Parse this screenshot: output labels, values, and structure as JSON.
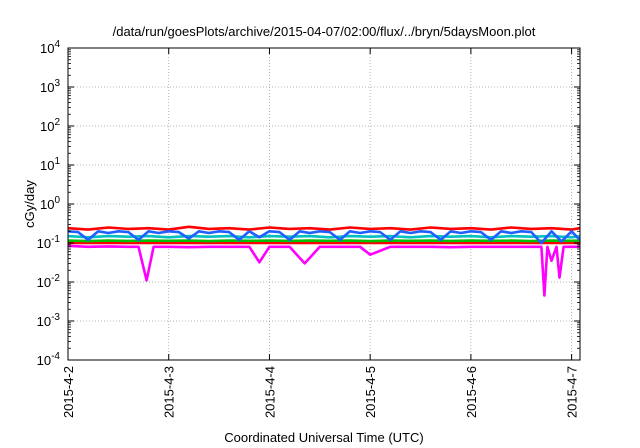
{
  "chart_data": {
    "type": "line",
    "title": "/data/run/goesPlots/archive/2015-04-07/02:00/flux/../bryn/5daysMoon.plot",
    "xlabel": "Coordinated Universal Time (UTC)",
    "ylabel": "cGy/day",
    "yscale": "log",
    "ylim": [
      0.0001,
      10000
    ],
    "xlim": [
      "2015-04-02 00:00",
      "2015-04-07 02:00"
    ],
    "grid": "on (dotted)",
    "legend": "none",
    "y_ticks": [
      {
        "value": 0.0001,
        "base": "10",
        "exp": "-4"
      },
      {
        "value": 0.001,
        "base": "10",
        "exp": "-3"
      },
      {
        "value": 0.01,
        "base": "10",
        "exp": "-2"
      },
      {
        "value": 0.1,
        "base": "10",
        "exp": "-1"
      },
      {
        "value": 1,
        "base": "10",
        "exp": "0"
      },
      {
        "value": 10,
        "base": "10",
        "exp": "1"
      },
      {
        "value": 100,
        "base": "10",
        "exp": "2"
      },
      {
        "value": 1000,
        "base": "10",
        "exp": "3"
      },
      {
        "value": 10000,
        "base": "10",
        "exp": "4"
      }
    ],
    "x_ticks": [
      {
        "value": 0,
        "label": "2015-4-2"
      },
      {
        "value": 1,
        "label": "2015-4-3"
      },
      {
        "value": 2,
        "label": "2015-4-4"
      },
      {
        "value": 3,
        "label": "2015-4-5"
      },
      {
        "value": 4,
        "label": "2015-4-6"
      },
      {
        "value": 5,
        "label": "2015-4-7"
      }
    ],
    "series": [
      {
        "color": "#ff00ff",
        "x": [
          0.0,
          0.2,
          0.4,
          0.6,
          0.7,
          0.78,
          0.85,
          1.0,
          1.2,
          1.4,
          1.6,
          1.8,
          1.9,
          2.0,
          2.2,
          2.35,
          2.5,
          2.7,
          2.9,
          3.0,
          3.2,
          3.4,
          3.6,
          3.8,
          4.0,
          4.2,
          4.4,
          4.6,
          4.7,
          4.73,
          4.76,
          4.8,
          4.85,
          4.88,
          4.92,
          5.0,
          5.08
        ],
        "values": [
          0.085,
          0.08,
          0.082,
          0.08,
          0.08,
          0.011,
          0.08,
          0.08,
          0.078,
          0.08,
          0.08,
          0.08,
          0.032,
          0.08,
          0.08,
          0.03,
          0.08,
          0.08,
          0.08,
          0.05,
          0.08,
          0.08,
          0.08,
          0.078,
          0.08,
          0.08,
          0.08,
          0.08,
          0.08,
          0.0045,
          0.08,
          0.035,
          0.08,
          0.013,
          0.08,
          0.08,
          0.08
        ]
      },
      {
        "color": "#ff0000",
        "x": [
          0.0,
          0.2,
          0.4,
          0.6,
          0.8,
          1.0,
          1.2,
          1.4,
          1.6,
          1.8,
          2.0,
          2.2,
          2.4,
          2.6,
          2.8,
          3.0,
          3.2,
          3.4,
          3.6,
          3.8,
          4.0,
          4.2,
          4.4,
          4.6,
          4.8,
          5.0,
          5.08
        ],
        "values": [
          0.1,
          0.1,
          0.1,
          0.1,
          0.1,
          0.1,
          0.1,
          0.1,
          0.1,
          0.1,
          0.1,
          0.1,
          0.1,
          0.1,
          0.1,
          0.1,
          0.1,
          0.1,
          0.1,
          0.1,
          0.1,
          0.1,
          0.1,
          0.1,
          0.1,
          0.1,
          0.1
        ]
      },
      {
        "color": "#00c000",
        "x": [
          0.0,
          0.2,
          0.4,
          0.6,
          0.8,
          1.0,
          1.2,
          1.4,
          1.6,
          1.8,
          2.0,
          2.2,
          2.4,
          2.6,
          2.8,
          3.0,
          3.2,
          3.4,
          3.6,
          3.8,
          4.0,
          4.2,
          4.4,
          4.6,
          4.8,
          5.0,
          5.08
        ],
        "values": [
          0.115,
          0.112,
          0.115,
          0.113,
          0.115,
          0.114,
          0.115,
          0.112,
          0.115,
          0.114,
          0.115,
          0.113,
          0.115,
          0.114,
          0.115,
          0.112,
          0.115,
          0.114,
          0.115,
          0.113,
          0.115,
          0.114,
          0.115,
          0.112,
          0.115,
          0.114,
          0.115
        ]
      },
      {
        "color": "#00c0c0",
        "x": [
          0.0,
          0.2,
          0.4,
          0.6,
          0.8,
          1.0,
          1.2,
          1.4,
          1.6,
          1.8,
          2.0,
          2.2,
          2.4,
          2.6,
          2.8,
          3.0,
          3.2,
          3.4,
          3.6,
          3.8,
          4.0,
          4.2,
          4.4,
          4.6,
          4.8,
          5.0,
          5.08
        ],
        "values": [
          0.15,
          0.14,
          0.15,
          0.145,
          0.15,
          0.14,
          0.15,
          0.145,
          0.15,
          0.14,
          0.15,
          0.145,
          0.15,
          0.14,
          0.15,
          0.145,
          0.15,
          0.14,
          0.15,
          0.145,
          0.15,
          0.14,
          0.15,
          0.145,
          0.15,
          0.14,
          0.15
        ]
      },
      {
        "color": "#ff0000",
        "x": [
          0.0,
          0.2,
          0.4,
          0.6,
          0.8,
          1.0,
          1.2,
          1.4,
          1.6,
          1.8,
          2.0,
          2.2,
          2.4,
          2.6,
          2.8,
          3.0,
          3.2,
          3.4,
          3.6,
          3.8,
          4.0,
          4.2,
          4.4,
          4.6,
          4.8,
          5.0,
          5.08
        ],
        "values": [
          0.24,
          0.22,
          0.25,
          0.23,
          0.24,
          0.22,
          0.26,
          0.23,
          0.24,
          0.22,
          0.25,
          0.23,
          0.24,
          0.22,
          0.25,
          0.23,
          0.24,
          0.22,
          0.25,
          0.23,
          0.24,
          0.22,
          0.25,
          0.23,
          0.24,
          0.22,
          0.24
        ]
      },
      {
        "color": "#2060ff",
        "x": [
          0.0,
          0.1,
          0.2,
          0.3,
          0.4,
          0.5,
          0.6,
          0.7,
          0.8,
          0.9,
          1.0,
          1.1,
          1.2,
          1.3,
          1.4,
          1.5,
          1.6,
          1.7,
          1.8,
          1.9,
          2.0,
          2.1,
          2.2,
          2.3,
          2.4,
          2.5,
          2.6,
          2.7,
          2.8,
          2.9,
          3.0,
          3.1,
          3.2,
          3.3,
          3.4,
          3.5,
          3.6,
          3.7,
          3.8,
          3.9,
          4.0,
          4.1,
          4.2,
          4.3,
          4.4,
          4.5,
          4.6,
          4.7,
          4.8,
          4.9,
          5.0,
          5.08
        ],
        "values": [
          0.2,
          0.19,
          0.12,
          0.2,
          0.18,
          0.2,
          0.19,
          0.12,
          0.2,
          0.18,
          0.2,
          0.19,
          0.13,
          0.2,
          0.18,
          0.2,
          0.19,
          0.12,
          0.2,
          0.14,
          0.2,
          0.19,
          0.12,
          0.2,
          0.18,
          0.2,
          0.19,
          0.12,
          0.2,
          0.18,
          0.2,
          0.19,
          0.12,
          0.2,
          0.18,
          0.2,
          0.19,
          0.12,
          0.2,
          0.18,
          0.2,
          0.19,
          0.12,
          0.2,
          0.18,
          0.2,
          0.19,
          0.1,
          0.2,
          0.11,
          0.2,
          0.12
        ]
      }
    ]
  }
}
